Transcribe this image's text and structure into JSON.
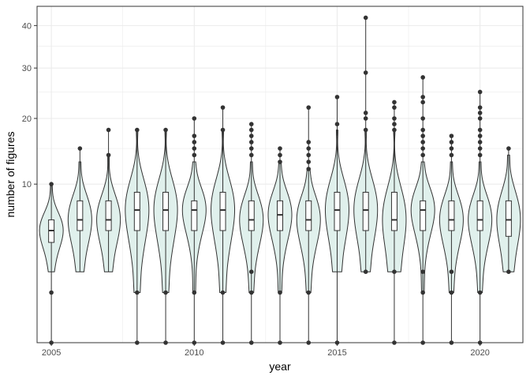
{
  "chart_data": {
    "type": "violin",
    "title": "",
    "xlabel": "year",
    "ylabel": "number of figures",
    "y_scale": "sqrt",
    "xlim": [
      2004.5,
      2021.5
    ],
    "ylim": [
      0,
      45
    ],
    "x_ticks": [
      2005,
      2010,
      2015,
      2020
    ],
    "y_ticks": [
      10,
      20,
      30,
      40
    ],
    "grid": true,
    "legend": "none",
    "colors": {
      "violin_fill": "#e0f0ec",
      "violin_stroke": "#333333",
      "box_fill": "#ffffff",
      "point": "#333333",
      "grid": "#ebebeb",
      "panel_border": "#333333"
    },
    "series": [
      {
        "year": 2005,
        "min": 1,
        "q1": 4,
        "median": 5,
        "q3": 6,
        "max": 8,
        "violin_lo": 2,
        "violin_hi": 10,
        "outliers": [
          0,
          1,
          10
        ]
      },
      {
        "year": 2006,
        "min": 2,
        "q1": 5,
        "median": 6,
        "q3": 8,
        "max": 13,
        "violin_lo": 2,
        "violin_hi": 13,
        "outliers": [
          15
        ]
      },
      {
        "year": 2007,
        "min": 2,
        "q1": 5,
        "median": 6,
        "q3": 8,
        "max": 13,
        "violin_lo": 2,
        "violin_hi": 14,
        "outliers": [
          14,
          18
        ]
      },
      {
        "year": 2008,
        "min": 0,
        "q1": 5,
        "median": 7,
        "q3": 9,
        "max": 16,
        "violin_lo": 1,
        "violin_hi": 18,
        "outliers": [
          0,
          1,
          18
        ]
      },
      {
        "year": 2009,
        "min": 0,
        "q1": 5,
        "median": 7,
        "q3": 9,
        "max": 16,
        "violin_lo": 1,
        "violin_hi": 18,
        "outliers": [
          0,
          1,
          18
        ]
      },
      {
        "year": 2010,
        "min": 0,
        "q1": 5,
        "median": 7,
        "q3": 8,
        "max": 13,
        "violin_lo": 1,
        "violin_hi": 13,
        "outliers": [
          0,
          1,
          14,
          15,
          16,
          17,
          20
        ]
      },
      {
        "year": 2011,
        "min": 0,
        "q1": 5,
        "median": 7,
        "q3": 9,
        "max": 16,
        "violin_lo": 1,
        "violin_hi": 18,
        "outliers": [
          0,
          1,
          18,
          22
        ]
      },
      {
        "year": 2012,
        "min": 0,
        "q1": 5,
        "median": 6,
        "q3": 8,
        "max": 13,
        "violin_lo": 1,
        "violin_hi": 13,
        "outliers": [
          0,
          1,
          2,
          14,
          15,
          16,
          17,
          18,
          19
        ]
      },
      {
        "year": 2013,
        "min": 0,
        "q1": 5,
        "median": 6.5,
        "q3": 8,
        "max": 12,
        "violin_lo": 1,
        "violin_hi": 13,
        "outliers": [
          0,
          1,
          13,
          14,
          15
        ]
      },
      {
        "year": 2014,
        "min": 0,
        "q1": 5,
        "median": 6,
        "q3": 8,
        "max": 12,
        "violin_lo": 1,
        "violin_hi": 12,
        "outliers": [
          0,
          1,
          12,
          13,
          14,
          15,
          16,
          22
        ]
      },
      {
        "year": 2015,
        "min": 0,
        "q1": 5,
        "median": 7,
        "q3": 9,
        "max": 17,
        "violin_lo": 2,
        "violin_hi": 18,
        "outliers": [
          0,
          19,
          24
        ]
      },
      {
        "year": 2016,
        "min": 2,
        "q1": 5,
        "median": 7,
        "q3": 9,
        "max": 17,
        "violin_lo": 2,
        "violin_hi": 18,
        "outliers": [
          2,
          18,
          20,
          21,
          29,
          42
        ]
      },
      {
        "year": 2017,
        "min": 0,
        "q1": 5,
        "median": 6,
        "q3": 9,
        "max": 16,
        "violin_lo": 2,
        "violin_hi": 18,
        "outliers": [
          0,
          2,
          18,
          19,
          20,
          22,
          23
        ]
      },
      {
        "year": 2018,
        "min": 0,
        "q1": 5,
        "median": 7,
        "q3": 8,
        "max": 13,
        "violin_lo": 1,
        "violin_hi": 13,
        "outliers": [
          0,
          1,
          2,
          14,
          15,
          16,
          17,
          18,
          20,
          23,
          24,
          28
        ]
      },
      {
        "year": 2019,
        "min": 0,
        "q1": 5,
        "median": 6,
        "q3": 8,
        "max": 13,
        "violin_lo": 1,
        "violin_hi": 13,
        "outliers": [
          0,
          1,
          2,
          14,
          15,
          16,
          17
        ]
      },
      {
        "year": 2020,
        "min": 0,
        "q1": 5,
        "median": 6,
        "q3": 8,
        "max": 13,
        "violin_lo": 1,
        "violin_hi": 13,
        "outliers": [
          0,
          1,
          14,
          15,
          16,
          17,
          18,
          20,
          21,
          22,
          25
        ]
      },
      {
        "year": 2021,
        "min": 2,
        "q1": 4.5,
        "median": 6,
        "q3": 8,
        "max": 13,
        "violin_lo": 2,
        "violin_hi": 14,
        "outliers": [
          2,
          15
        ]
      }
    ]
  }
}
